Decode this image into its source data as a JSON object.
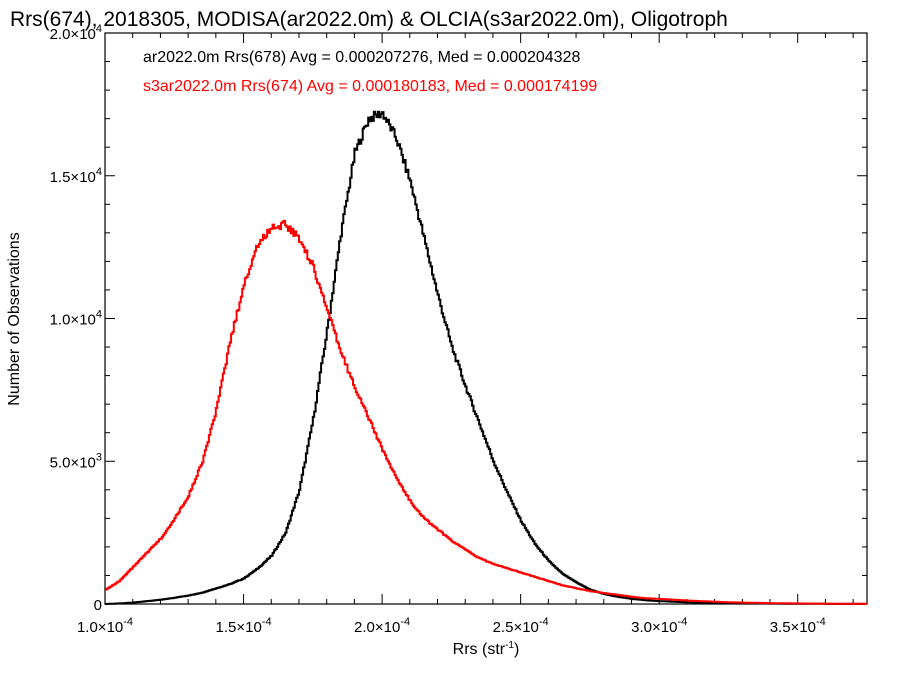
{
  "chart_data": {
    "type": "line",
    "title": "Rrs(674), 2018305, MODISA(ar2022.0m) & OLCIA(s3ar2022.0m), Oligotroph",
    "xlabel": "Rrs (str",
    "xlabel_sup": "-1",
    "xlabel_end": ")",
    "ylabel": "Number of Observations",
    "xlim": [
      0.0001,
      0.000375
    ],
    "ylim": [
      0,
      20000
    ],
    "x_ticks": [
      {
        "value": 0.0001,
        "mant": "1.0×10",
        "exp": "-4"
      },
      {
        "value": 0.00015,
        "mant": "1.5×10",
        "exp": "-4"
      },
      {
        "value": 0.0002,
        "mant": "2.0×10",
        "exp": "-4"
      },
      {
        "value": 0.00025,
        "mant": "2.5×10",
        "exp": "-4"
      },
      {
        "value": 0.0003,
        "mant": "3.0×10",
        "exp": "-4"
      },
      {
        "value": 0.00035,
        "mant": "3.5×10",
        "exp": "-4"
      }
    ],
    "y_ticks": [
      {
        "value": 0,
        "mant": "0",
        "exp": ""
      },
      {
        "value": 5000,
        "mant": "5.0×10",
        "exp": "3"
      },
      {
        "value": 10000,
        "mant": "1.0×10",
        "exp": "4"
      },
      {
        "value": 15000,
        "mant": "1.5×10",
        "exp": "4"
      },
      {
        "value": 20000,
        "mant": "2.0×10",
        "exp": "4"
      }
    ],
    "x": [
      0.0001,
      0.000105,
      0.00011,
      0.000115,
      0.00012,
      0.000125,
      0.00013,
      0.000135,
      0.00014,
      0.000145,
      0.00015,
      0.000155,
      0.00016,
      0.000165,
      0.00017,
      0.000175,
      0.00018,
      0.000185,
      0.00019,
      0.000195,
      0.0002,
      0.000205,
      0.00021,
      0.000215,
      0.00022,
      0.000225,
      0.00023,
      0.000235,
      0.00024,
      0.000245,
      0.00025,
      0.000255,
      0.00026,
      0.000265,
      0.00027,
      0.000275,
      0.00028,
      0.000285,
      0.00029,
      0.000295,
      0.0003,
      0.000305,
      0.00031,
      0.000315,
      0.00032,
      0.000325,
      0.00033,
      0.000335,
      0.00034,
      0.000345,
      0.00035,
      0.000355,
      0.00036,
      0.000365,
      0.00037,
      0.000375
    ],
    "series": [
      {
        "name": "ar2022.0m Rrs(678) Avg = 0.000207276, Med = 0.000204328",
        "color": "#000000",
        "values": [
          0,
          20,
          50,
          100,
          150,
          220,
          300,
          400,
          550,
          700,
          900,
          1250,
          1700,
          2500,
          4000,
          6500,
          9600,
          13000,
          15800,
          17000,
          17200,
          16300,
          14800,
          12800,
          10800,
          9000,
          7600,
          6300,
          5000,
          3900,
          2900,
          2100,
          1500,
          1050,
          750,
          500,
          350,
          250,
          180,
          130,
          100,
          80,
          60,
          50,
          40,
          30,
          25,
          20,
          15,
          12,
          10,
          8,
          5,
          5,
          5,
          5
        ]
      },
      {
        "name": "s3ar2022.0m Rrs(674) Avg = 0.000180183, Med = 0.000174199",
        "color": "#ff0000",
        "values": [
          500,
          800,
          1300,
          1800,
          2300,
          3000,
          3800,
          5000,
          6800,
          9200,
          11200,
          12600,
          13200,
          13300,
          12800,
          11800,
          10300,
          8800,
          7600,
          6500,
          5400,
          4400,
          3600,
          3000,
          2600,
          2200,
          1900,
          1600,
          1400,
          1250,
          1100,
          950,
          800,
          650,
          550,
          450,
          380,
          320,
          250,
          200,
          180,
          150,
          120,
          100,
          80,
          60,
          50,
          40,
          30,
          25,
          20,
          15,
          12,
          10,
          8,
          5
        ]
      }
    ]
  }
}
